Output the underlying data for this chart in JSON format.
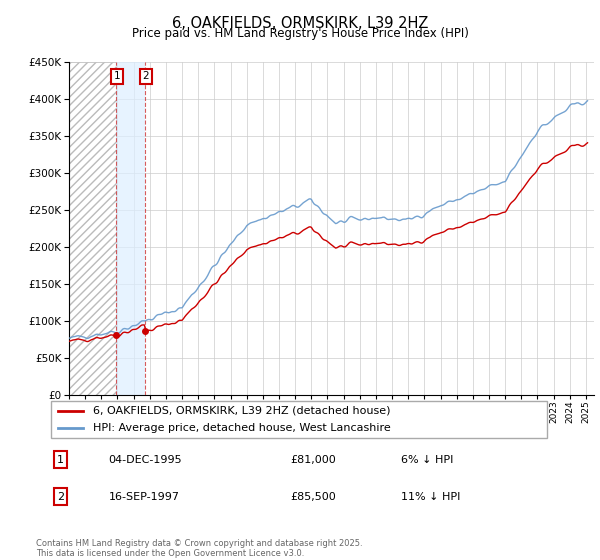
{
  "title": "6, OAKFIELDS, ORMSKIRK, L39 2HZ",
  "subtitle": "Price paid vs. HM Land Registry's House Price Index (HPI)",
  "legend_entry1": "6, OAKFIELDS, ORMSKIRK, L39 2HZ (detached house)",
  "legend_entry2": "HPI: Average price, detached house, West Lancashire",
  "transaction1_date": "04-DEC-1995",
  "transaction1_price": "£81,000",
  "transaction1_hpi": "6% ↓ HPI",
  "transaction2_date": "16-SEP-1997",
  "transaction2_price": "£85,500",
  "transaction2_hpi": "11% ↓ HPI",
  "footnote": "Contains HM Land Registry data © Crown copyright and database right 2025.\nThis data is licensed under the Open Government Licence v3.0.",
  "line1_color": "#cc0000",
  "line2_color": "#6699cc",
  "ylim_min": 0,
  "ylim_max": 450000,
  "year_start": 1993,
  "year_end": 2025,
  "purchase1_year": 1995.92,
  "purchase1_price": 81000,
  "purchase2_year": 1997.72,
  "purchase2_price": 85500
}
